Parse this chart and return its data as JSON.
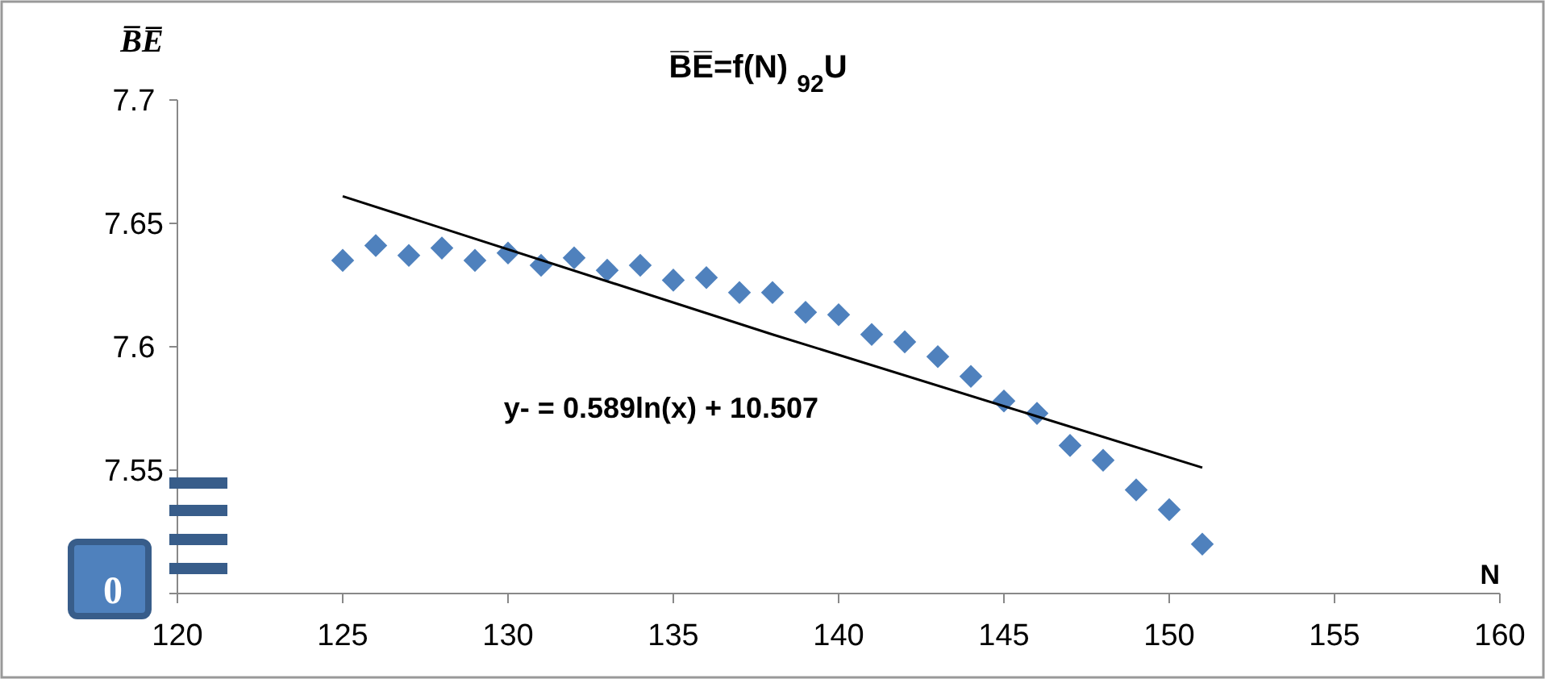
{
  "chart_data": {
    "type": "scatter",
    "title": "B̅E̅=f(N)   $_{92}$U",
    "xlabel": "N",
    "ylabel": "B̅E̅",
    "annotations": [
      "y- = 0.589ln(x)  + 10.507",
      "0"
    ],
    "xlim": [
      120,
      160
    ],
    "xticks": [
      120,
      125,
      130,
      135,
      140,
      145,
      150,
      155,
      160
    ],
    "ylim": [
      7.5,
      7.7
    ],
    "yticks": [
      {
        "value": 7.5,
        "label": null
      },
      7.55,
      7.6,
      7.65,
      7.7
    ],
    "grid": false,
    "series": [
      {
        "marker": "diamond",
        "color": "#4f81bd",
        "x": [
          125,
          126,
          127,
          128,
          129,
          130,
          131,
          132,
          133,
          134,
          135,
          136,
          137,
          138,
          139,
          140,
          141,
          142,
          143,
          144,
          145,
          146,
          147,
          148,
          149,
          150,
          151
        ],
        "values": [
          7.635,
          7.641,
          7.637,
          7.64,
          7.635,
          7.638,
          7.633,
          7.636,
          7.631,
          7.633,
          7.627,
          7.628,
          7.622,
          7.622,
          7.614,
          7.613,
          7.605,
          7.602,
          7.596,
          7.588,
          7.578,
          7.573,
          7.56,
          7.554,
          7.542,
          7.534,
          7.52
        ]
      },
      {
        "type": "line",
        "marker": "none",
        "color": "#000000",
        "x": [
          125,
          138,
          151
        ],
        "values": [
          7.661,
          7.605,
          7.551
        ]
      }
    ]
  }
}
